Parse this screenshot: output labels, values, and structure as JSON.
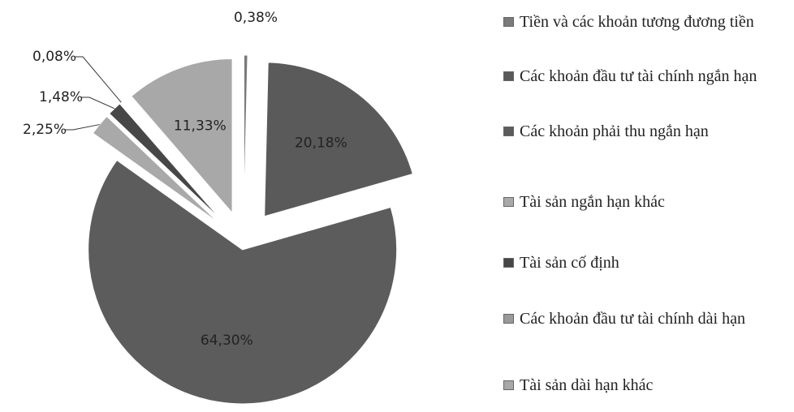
{
  "chart_data": {
    "type": "pie",
    "categories": [
      "Tiền và các khoản tương đương tiền",
      "Các khoản đầu tư tài chính ngắn hạn",
      "Các khoản phải thu ngắn hạn",
      "Tài sản ngắn hạn khác",
      "Tài sản cố định",
      "Các khoản đầu tư tài chính dài hạn",
      "Tài sản dài hạn khác"
    ],
    "values": [
      0.38,
      20.18,
      64.3,
      2.25,
      1.48,
      0.08,
      11.33
    ],
    "value_labels": [
      "0,38%",
      "20,18%",
      "64,30%",
      "2,25%",
      "1,48%",
      "0,08%",
      "11,33%"
    ],
    "colors": [
      "#7a7a7a",
      "#5a5a5a",
      "#5c5c5c",
      "#a9a9a9",
      "#474747",
      "#9a9a9a",
      "#a8a8a8"
    ],
    "legend": "right"
  }
}
